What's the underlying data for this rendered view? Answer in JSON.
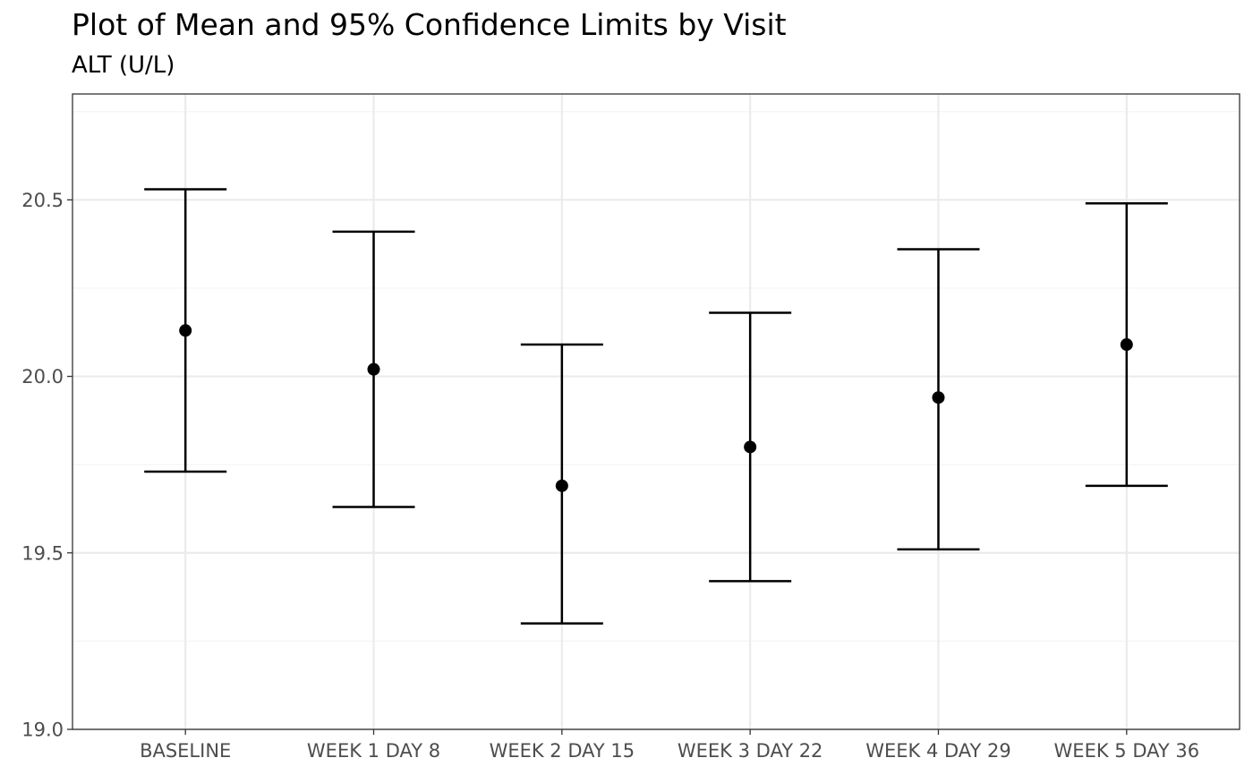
{
  "chart_data": {
    "type": "scatter",
    "title": "Plot of Mean and 95% Confidence Limits by Visit",
    "subtitle": "ALT (U/L)",
    "xlabel": "",
    "ylabel": "",
    "categories": [
      "BASELINE",
      "WEEK 1 DAY 8",
      "WEEK 2 DAY 15",
      "WEEK 3 DAY 22",
      "WEEK 4 DAY 29",
      "WEEK 5 DAY 36"
    ],
    "series": [
      {
        "mean": [
          20.13,
          20.02,
          19.69,
          19.8,
          19.94,
          20.09
        ],
        "lower_cl": [
          19.73,
          19.63,
          19.3,
          19.42,
          19.51,
          19.69
        ],
        "upper_cl": [
          20.53,
          20.41,
          20.09,
          20.18,
          20.36,
          20.49
        ]
      }
    ],
    "ylim": [
      19.0,
      20.8
    ],
    "y_ticks": [
      "19.0",
      "19.5",
      "20.0",
      "20.5"
    ],
    "grid": true,
    "legend": "none"
  },
  "colors": {
    "marks": "#000000",
    "grid_major": "#ebebeb",
    "grid_minor": "#f4f4f4",
    "panel_border": "#333333",
    "tick_text": "#4d4d4d"
  }
}
